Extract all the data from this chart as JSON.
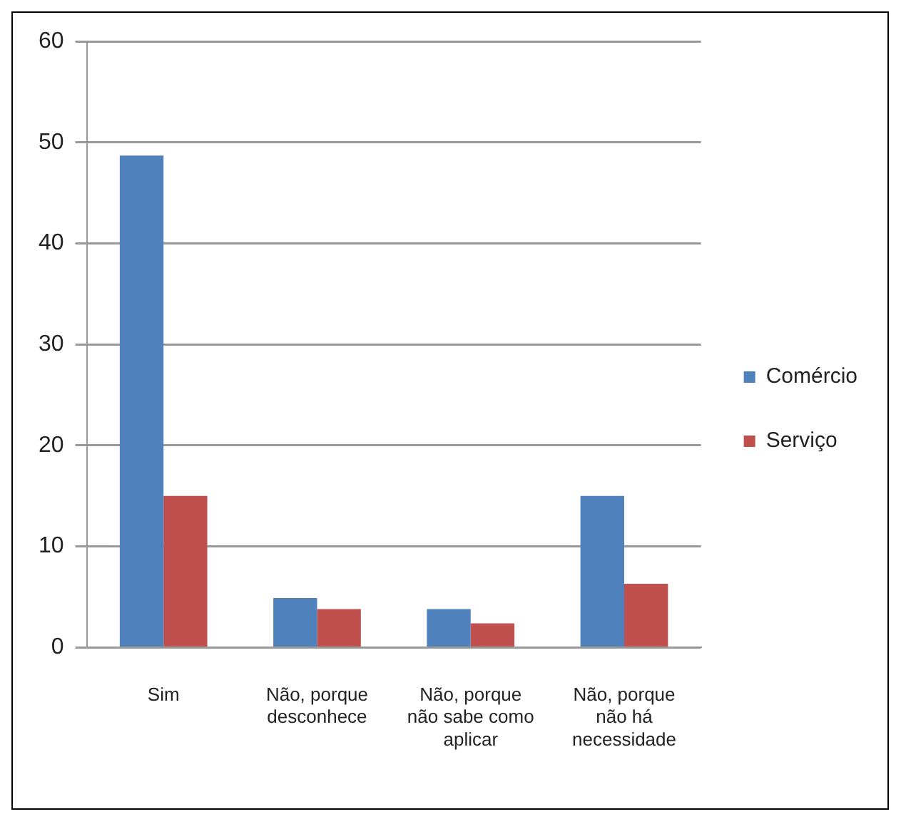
{
  "chart_data": {
    "type": "bar",
    "categories": [
      "Sim",
      "Não, porque desconhece",
      "Não, porque não sabe como aplicar",
      "Não, porque não há necessidade"
    ],
    "series": [
      {
        "name": "Comércio",
        "color": "#4f81bd",
        "values": [
          48.7,
          4.9,
          3.8,
          15
        ]
      },
      {
        "name": "Serviço",
        "color": "#c0504d",
        "values": [
          15,
          3.8,
          2.4,
          6.3
        ]
      }
    ],
    "ylim": [
      0,
      60
    ],
    "yticks": [
      0,
      10,
      20,
      30,
      40,
      50,
      60
    ],
    "grid": "y",
    "legend": "right"
  }
}
